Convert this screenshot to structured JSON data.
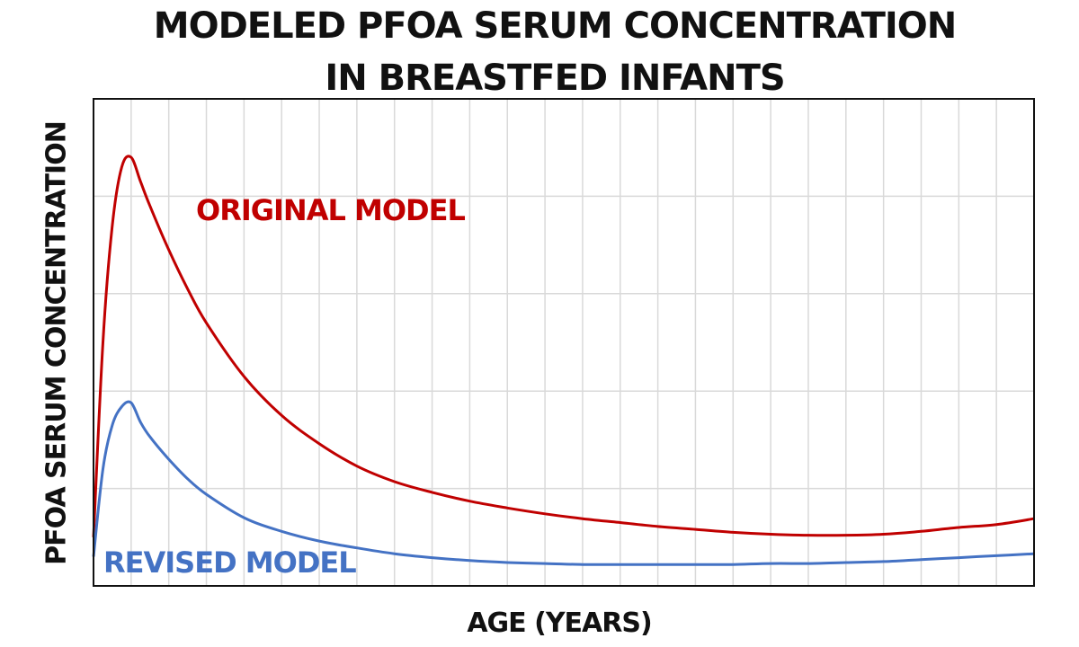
{
  "chart_data": {
    "type": "line",
    "title_lines": [
      "MODELED PFOA SERUM CONCENTRATION",
      "IN BREASTFED INFANTS"
    ],
    "xlabel": "AGE (YEARS)",
    "ylabel": "PFOA SERUM CONCENTRATION",
    "xlim": [
      0,
      25
    ],
    "ylim": [
      0,
      50
    ],
    "grid": true,
    "series": [
      {
        "name": "ORIGINAL MODEL",
        "color": "#C00000",
        "points": [
          [
            0,
            5
          ],
          [
            0.25,
            25
          ],
          [
            0.5,
            37
          ],
          [
            0.75,
            43
          ],
          [
            1.0,
            44
          ],
          [
            1.25,
            41.5
          ],
          [
            1.5,
            39
          ],
          [
            2.0,
            34.5
          ],
          [
            2.5,
            30.5
          ],
          [
            3.0,
            27
          ],
          [
            4.0,
            21.5
          ],
          [
            5.0,
            17.5
          ],
          [
            6.0,
            14.6
          ],
          [
            7.0,
            12.3
          ],
          [
            8.0,
            10.7
          ],
          [
            9.0,
            9.6
          ],
          [
            10.0,
            8.7
          ],
          [
            11.0,
            8.0
          ],
          [
            12.0,
            7.4
          ],
          [
            13.0,
            6.9
          ],
          [
            14.0,
            6.5
          ],
          [
            15.0,
            6.1
          ],
          [
            16.0,
            5.8
          ],
          [
            17.0,
            5.5
          ],
          [
            18.0,
            5.3
          ],
          [
            19.0,
            5.2
          ],
          [
            20.0,
            5.2
          ],
          [
            21.0,
            5.3
          ],
          [
            22.0,
            5.6
          ],
          [
            23.0,
            6.0
          ],
          [
            24.0,
            6.3
          ],
          [
            25.0,
            6.9
          ]
        ]
      },
      {
        "name": "REVISED MODEL",
        "color": "#4472C4",
        "points": [
          [
            0,
            3
          ],
          [
            0.25,
            12
          ],
          [
            0.5,
            16.5
          ],
          [
            0.75,
            18.4
          ],
          [
            1.0,
            18.8
          ],
          [
            1.25,
            16.8
          ],
          [
            1.5,
            15.3
          ],
          [
            2.0,
            13
          ],
          [
            2.5,
            11
          ],
          [
            3.0,
            9.4
          ],
          [
            4.0,
            7.0
          ],
          [
            5.0,
            5.6
          ],
          [
            6.0,
            4.6
          ],
          [
            7.0,
            3.9
          ],
          [
            8.0,
            3.3
          ],
          [
            9.0,
            2.9
          ],
          [
            10.0,
            2.6
          ],
          [
            11.0,
            2.4
          ],
          [
            12.0,
            2.3
          ],
          [
            13.0,
            2.2
          ],
          [
            14.0,
            2.2
          ],
          [
            15.0,
            2.2
          ],
          [
            16.0,
            2.2
          ],
          [
            17.0,
            2.2
          ],
          [
            18.0,
            2.3
          ],
          [
            19.0,
            2.3
          ],
          [
            20.0,
            2.4
          ],
          [
            21.0,
            2.5
          ],
          [
            22.0,
            2.7
          ],
          [
            23.0,
            2.9
          ],
          [
            24.0,
            3.1
          ],
          [
            25.0,
            3.3
          ]
        ]
      }
    ]
  }
}
